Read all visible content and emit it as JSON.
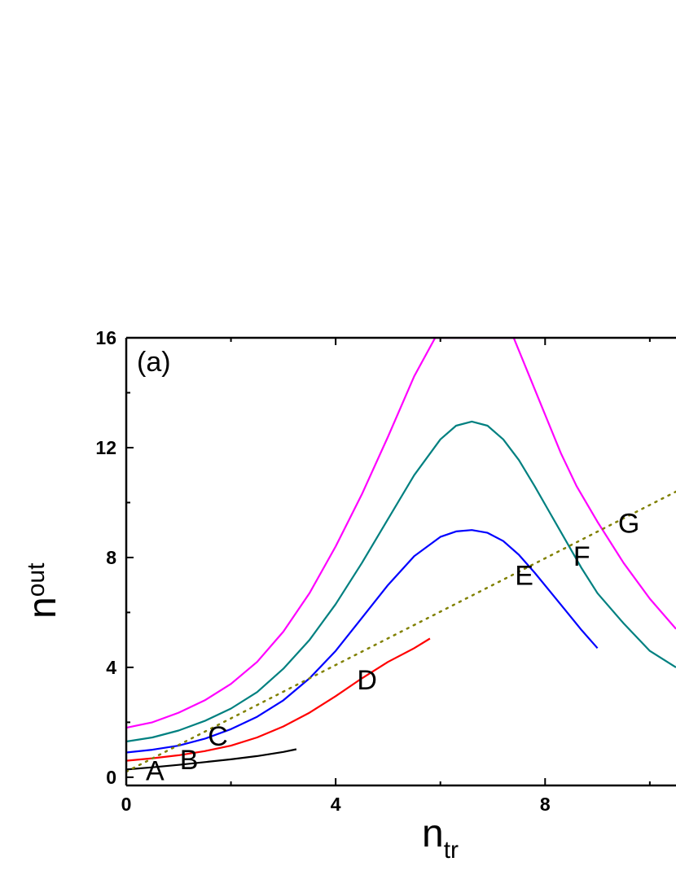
{
  "chart_data": {
    "type": "line",
    "panel_label": "(a)",
    "xlabel": "n",
    "xlabel_sub": "tr",
    "ylabel": "n",
    "ylabel_sub": "out",
    "xlim": [
      0,
      10.5
    ],
    "ylim": [
      -0.3,
      16
    ],
    "x_ticks": [
      0,
      4,
      8
    ],
    "y_ticks": [
      0,
      4,
      8,
      12,
      16
    ],
    "grid": false,
    "colors": {
      "black": "#000000",
      "red": "#ff0000",
      "blue": "#0000ff",
      "teal": "#008080",
      "magenta": "#ff00ff",
      "olive": "#808000"
    },
    "series": [
      {
        "color": "black",
        "x": [
          0.0,
          0.5,
          1.0,
          1.5,
          2.0,
          2.5,
          3.0,
          3.25
        ],
        "y": [
          0.28,
          0.36,
          0.45,
          0.55,
          0.65,
          0.77,
          0.92,
          1.02
        ]
      },
      {
        "color": "red",
        "x": [
          0.0,
          0.5,
          1.0,
          1.5,
          2.0,
          2.5,
          3.0,
          3.5,
          4.0,
          4.5,
          5.0,
          5.5,
          5.8
        ],
        "y": [
          0.6,
          0.69,
          0.8,
          0.95,
          1.15,
          1.45,
          1.85,
          2.35,
          2.95,
          3.6,
          4.2,
          4.7,
          5.05
        ]
      },
      {
        "color": "blue",
        "x": [
          0.0,
          0.5,
          1.0,
          1.5,
          2.0,
          2.5,
          3.0,
          3.5,
          4.0,
          4.5,
          5.0,
          5.5,
          6.0,
          6.3,
          6.6,
          6.9,
          7.2,
          7.5,
          7.8,
          8.1,
          8.4,
          8.7,
          9.0
        ],
        "y": [
          0.9,
          1.0,
          1.15,
          1.4,
          1.75,
          2.2,
          2.8,
          3.6,
          4.6,
          5.8,
          7.0,
          8.05,
          8.75,
          8.95,
          9.0,
          8.9,
          8.6,
          8.1,
          7.45,
          6.75,
          6.05,
          5.35,
          4.7
        ]
      },
      {
        "color": "teal",
        "x": [
          0.0,
          0.5,
          1.0,
          1.5,
          2.0,
          2.5,
          3.0,
          3.5,
          4.0,
          4.5,
          5.0,
          5.5,
          6.0,
          6.3,
          6.6,
          6.9,
          7.2,
          7.5,
          7.8,
          8.1,
          8.4,
          8.7,
          9.0,
          9.5,
          10.0,
          10.5
        ],
        "y": [
          1.3,
          1.45,
          1.7,
          2.05,
          2.5,
          3.1,
          3.95,
          5.0,
          6.3,
          7.8,
          9.4,
          11.0,
          12.3,
          12.8,
          12.95,
          12.8,
          12.3,
          11.55,
          10.6,
          9.6,
          8.6,
          7.6,
          6.7,
          5.6,
          4.6,
          4.0
        ]
      },
      {
        "color": "magenta",
        "x": [
          0.0,
          0.5,
          1.0,
          1.5,
          2.0,
          2.5,
          3.0,
          3.5,
          4.0,
          4.5,
          5.0,
          5.5,
          5.9,
          7.4,
          7.7,
          8.0,
          8.3,
          8.6,
          9.0,
          9.5,
          10.0,
          10.5
        ],
        "y": [
          1.8,
          2.0,
          2.35,
          2.8,
          3.4,
          4.2,
          5.3,
          6.7,
          8.4,
          10.3,
          12.4,
          14.6,
          16.0,
          16.0,
          14.6,
          13.2,
          11.8,
          10.6,
          9.3,
          7.8,
          6.5,
          5.4
        ]
      },
      {
        "color": "olive",
        "dotted": true,
        "x": [
          0.0,
          10.5
        ],
        "y": [
          0.2,
          10.4
        ]
      }
    ],
    "point_labels": [
      {
        "text": "A",
        "x": 0.55,
        "y": -0.1
      },
      {
        "text": "B",
        "x": 1.2,
        "y": 0.3
      },
      {
        "text": "C",
        "x": 1.75,
        "y": 1.15
      },
      {
        "text": "D",
        "x": 4.6,
        "y": 3.2
      },
      {
        "text": "E",
        "x": 7.6,
        "y": 7.0
      },
      {
        "text": "F",
        "x": 8.7,
        "y": 7.7
      },
      {
        "text": "G",
        "x": 9.6,
        "y": 8.9
      }
    ]
  }
}
